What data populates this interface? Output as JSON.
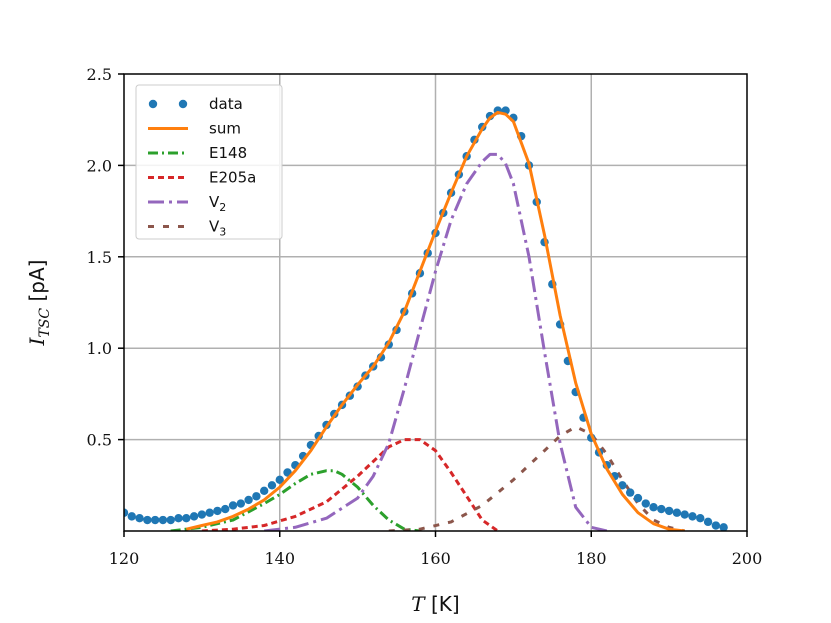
{
  "chart_data": {
    "type": "line",
    "xlabel": "T [K]",
    "ylabel": "I_TSC [pA]",
    "xlim": [
      120,
      200
    ],
    "ylim": [
      0,
      2.5
    ],
    "xticks": [
      "120",
      "140",
      "160",
      "180",
      "200"
    ],
    "yticks": [
      "0.5",
      "1.0",
      "1.5",
      "2.0",
      "2.5"
    ],
    "grid": true,
    "legend_position": "top-left",
    "legend_entries": [
      {
        "label": "data",
        "sub": "",
        "color": "#1f77b4",
        "style": "dots"
      },
      {
        "label": "sum",
        "sub": "",
        "color": "#ff7f0e",
        "style": "solid"
      },
      {
        "label": "E148",
        "sub": "",
        "color": "#2ca02c",
        "style": "dashdot"
      },
      {
        "label": "E205a",
        "sub": "",
        "color": "#d62728",
        "style": "dashed"
      },
      {
        "label": "V",
        "sub": "2",
        "color": "#9467bd",
        "style": "dashdot-long"
      },
      {
        "label": "V",
        "sub": "3",
        "color": "#8c564b",
        "style": "dotted-dash"
      }
    ],
    "series": [
      {
        "name": "data",
        "color": "#1f77b4",
        "x": [
          120,
          121,
          122,
          123,
          124,
          125,
          126,
          127,
          128,
          129,
          130,
          131,
          132,
          133,
          134,
          135,
          136,
          137,
          138,
          139,
          140,
          141,
          142,
          143,
          144,
          145,
          146,
          147,
          148,
          149,
          150,
          151,
          152,
          153,
          154,
          155,
          156,
          157,
          158,
          159,
          160,
          161,
          162,
          163,
          164,
          165,
          166,
          167,
          168,
          169,
          170,
          171,
          172,
          173,
          174,
          175,
          176,
          177,
          178,
          179,
          180,
          181,
          182,
          183,
          184,
          185,
          186,
          187,
          188,
          189,
          190,
          191,
          192,
          193,
          194,
          195,
          196,
          197
        ],
        "y": [
          0.1,
          0.08,
          0.07,
          0.06,
          0.06,
          0.06,
          0.06,
          0.07,
          0.07,
          0.08,
          0.09,
          0.1,
          0.11,
          0.12,
          0.14,
          0.15,
          0.17,
          0.19,
          0.22,
          0.25,
          0.28,
          0.32,
          0.36,
          0.41,
          0.47,
          0.52,
          0.58,
          0.64,
          0.69,
          0.74,
          0.79,
          0.85,
          0.9,
          0.95,
          1.02,
          1.1,
          1.2,
          1.3,
          1.41,
          1.52,
          1.63,
          1.74,
          1.85,
          1.95,
          2.05,
          2.14,
          2.21,
          2.27,
          2.3,
          2.3,
          2.26,
          2.16,
          2.0,
          1.8,
          1.58,
          1.35,
          1.13,
          0.93,
          0.76,
          0.62,
          0.51,
          0.43,
          0.36,
          0.3,
          0.25,
          0.21,
          0.18,
          0.15,
          0.13,
          0.12,
          0.11,
          0.1,
          0.09,
          0.08,
          0.07,
          0.05,
          0.03,
          0.02
        ]
      },
      {
        "name": "sum",
        "color": "#ff7f0e",
        "x": [
          128,
          130,
          132,
          134,
          136,
          138,
          140,
          142,
          144,
          146,
          148,
          150,
          152,
          154,
          156,
          158,
          160,
          162,
          164,
          166,
          167,
          168,
          169,
          170,
          172,
          174,
          176,
          178,
          180,
          182,
          184,
          186,
          188,
          190,
          192
        ],
        "y": [
          0.01,
          0.03,
          0.05,
          0.08,
          0.12,
          0.17,
          0.24,
          0.33,
          0.44,
          0.57,
          0.69,
          0.8,
          0.9,
          1.03,
          1.2,
          1.42,
          1.64,
          1.85,
          2.05,
          2.2,
          2.26,
          2.29,
          2.28,
          2.24,
          2.01,
          1.62,
          1.18,
          0.81,
          0.53,
          0.34,
          0.2,
          0.1,
          0.04,
          0.01,
          0.0
        ]
      },
      {
        "name": "E148",
        "color": "#2ca02c",
        "x": [
          126,
          130,
          134,
          138,
          140,
          142,
          144,
          146,
          147,
          148,
          150,
          152,
          154,
          156,
          158
        ],
        "y": [
          0.0,
          0.02,
          0.06,
          0.15,
          0.2,
          0.26,
          0.31,
          0.33,
          0.33,
          0.31,
          0.24,
          0.14,
          0.06,
          0.01,
          0.0
        ]
      },
      {
        "name": "E205a",
        "color": "#d62728",
        "x": [
          130,
          134,
          138,
          142,
          146,
          150,
          152,
          154,
          156,
          158,
          160,
          162,
          164,
          166,
          168
        ],
        "y": [
          0.0,
          0.01,
          0.03,
          0.08,
          0.16,
          0.3,
          0.38,
          0.46,
          0.5,
          0.5,
          0.44,
          0.32,
          0.19,
          0.06,
          0.0
        ]
      },
      {
        "name": "V2",
        "color": "#9467bd",
        "x": [
          138,
          142,
          146,
          150,
          152,
          154,
          156,
          158,
          160,
          162,
          164,
          166,
          167,
          168,
          169,
          170,
          172,
          174,
          176,
          178,
          180,
          182
        ],
        "y": [
          0.0,
          0.02,
          0.07,
          0.18,
          0.3,
          0.48,
          0.78,
          1.1,
          1.42,
          1.7,
          1.9,
          2.02,
          2.06,
          2.06,
          2.01,
          1.9,
          1.5,
          0.98,
          0.48,
          0.13,
          0.02,
          0.0
        ]
      },
      {
        "name": "V3",
        "color": "#8c564b",
        "x": [
          154,
          158,
          162,
          166,
          170,
          174,
          176,
          178,
          180,
          182,
          184,
          186,
          188,
          190,
          192
        ],
        "y": [
          0.0,
          0.01,
          0.05,
          0.14,
          0.28,
          0.44,
          0.52,
          0.57,
          0.53,
          0.42,
          0.28,
          0.15,
          0.06,
          0.02,
          0.0
        ]
      }
    ]
  }
}
